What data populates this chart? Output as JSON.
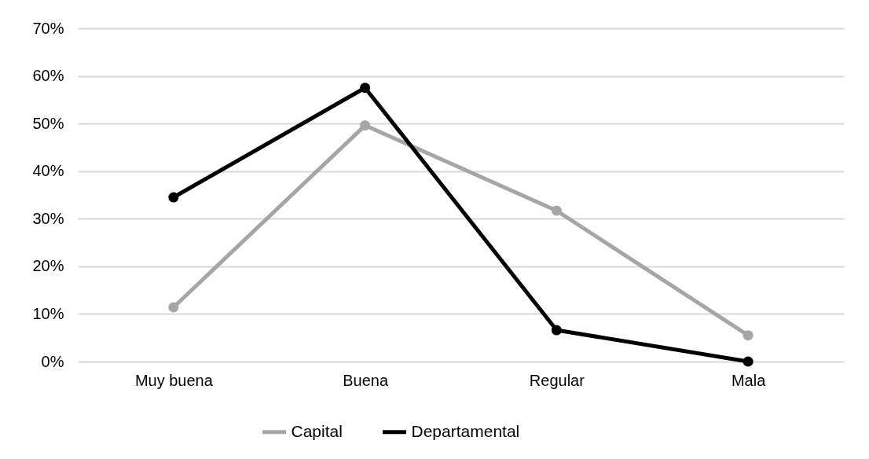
{
  "chart_data": {
    "type": "line",
    "categories": [
      "Muy buena",
      "Buena",
      "Regular",
      "Mala"
    ],
    "series": [
      {
        "name": "Capital",
        "color": "#a6a6a6",
        "values": [
          11.4,
          49.6,
          31.7,
          5.5
        ]
      },
      {
        "name": "Departamental",
        "color": "#000000",
        "values": [
          34.5,
          57.5,
          6.6,
          0
        ]
      }
    ],
    "ylim": [
      0,
      70
    ],
    "yticks": [
      {
        "value": 0,
        "label": "0%"
      },
      {
        "value": 10,
        "label": "10%"
      },
      {
        "value": 20,
        "label": "20%"
      },
      {
        "value": 30,
        "label": "30%"
      },
      {
        "value": 40,
        "label": "40%"
      },
      {
        "value": 50,
        "label": "50%"
      },
      {
        "value": 60,
        "label": "60%"
      },
      {
        "value": 70,
        "label": "70%"
      }
    ],
    "grid": "y",
    "legend": "bottom",
    "marker": "circle",
    "line_style": "solid"
  }
}
